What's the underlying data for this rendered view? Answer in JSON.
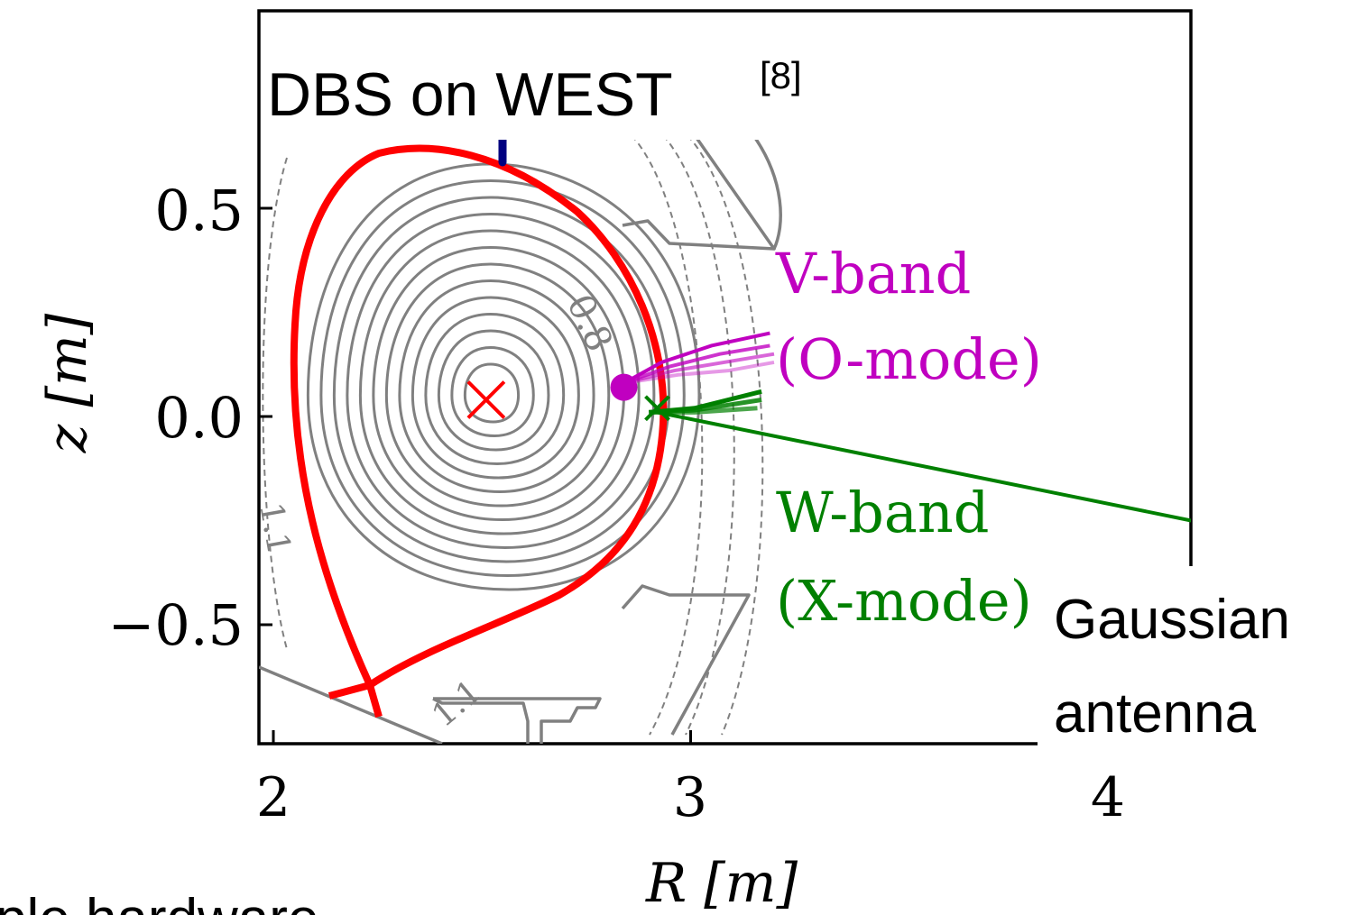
{
  "chart_data": {
    "type": "line",
    "title": "DBS on WEST",
    "title_ref": "[8]",
    "xlabel": "R [m]",
    "ylabel": "z [m]",
    "xlim": [
      1.97,
      4.2
    ],
    "ylim": [
      -0.78,
      0.65
    ],
    "xticks": [
      2,
      3,
      4
    ],
    "xtick_labels": [
      "2",
      "3",
      "4"
    ],
    "yticks": [
      0.5,
      0.0,
      -0.5
    ],
    "ytick_labels": [
      "0.5",
      "0.0",
      "−0.5"
    ],
    "grid": false,
    "contour_labels": [
      {
        "text": "0.8",
        "at": [
          2.72,
          0.26
        ]
      },
      {
        "text": "1.1",
        "at": [
          1.98,
          -0.26
        ]
      },
      {
        "text": "1.1",
        "at": [
          2.45,
          -0.72
        ]
      }
    ],
    "magnetic_axis": {
      "R": 2.51,
      "z": 0.04
    },
    "x_point": {
      "R": 2.22,
      "z": -0.64
    },
    "series": [
      {
        "name": "V-band (O-mode)",
        "color": "#c000c0",
        "antenna": "",
        "rays": [
          {
            "x": [
              2.84,
              2.93,
              3.05,
              3.19
            ],
            "y": [
              0.08,
              0.13,
              0.17,
              0.2
            ]
          },
          {
            "x": [
              2.84,
              2.95,
              3.07,
              3.19
            ],
            "y": [
              0.08,
              0.12,
              0.15,
              0.17
            ]
          },
          {
            "x": [
              2.84,
              2.96,
              3.08,
              3.2
            ],
            "y": [
              0.08,
              0.11,
              0.13,
              0.15
            ]
          },
          {
            "x": [
              2.84,
              2.97,
              3.09,
              3.2
            ],
            "y": [
              0.08,
              0.1,
              0.11,
              0.13
            ]
          }
        ],
        "endpoint": {
          "R": 2.84,
          "z": 0.07
        }
      },
      {
        "name": "W-band (X-mode)",
        "color": "#008000",
        "rays": [
          {
            "x": [
              2.9,
              3.01,
              3.17
            ],
            "y": [
              0.01,
              0.02,
              0.06
            ]
          },
          {
            "x": [
              2.9,
              3.01,
              3.17
            ],
            "y": [
              0.01,
              0.015,
              0.04
            ]
          },
          {
            "x": [
              2.91,
              3.01,
              3.16
            ],
            "y": [
              0.01,
              0.01,
              0.02
            ]
          }
        ],
        "beam_line": {
          "x": [
            2.92,
            4.2
          ],
          "y": [
            0.01,
            -0.25
          ]
        },
        "endpoint": {
          "R": 2.92,
          "z": 0.02
        }
      }
    ],
    "colors": {
      "separatrix": "#ff0000",
      "flux_surfaces": "#808080",
      "vessel": "#808080",
      "v_band": "#c000c0",
      "w_band": "#008000",
      "probe": "#000080"
    }
  },
  "labels": {
    "v_band_line1": "V-band",
    "v_band_line2": "(O-mode)",
    "w_band_line1": "W-band",
    "w_band_line2": "(X-mode)",
    "antenna_line1": "Gaussian",
    "antenna_line2": "antenna",
    "bottom_fragment": "ple hardware"
  }
}
